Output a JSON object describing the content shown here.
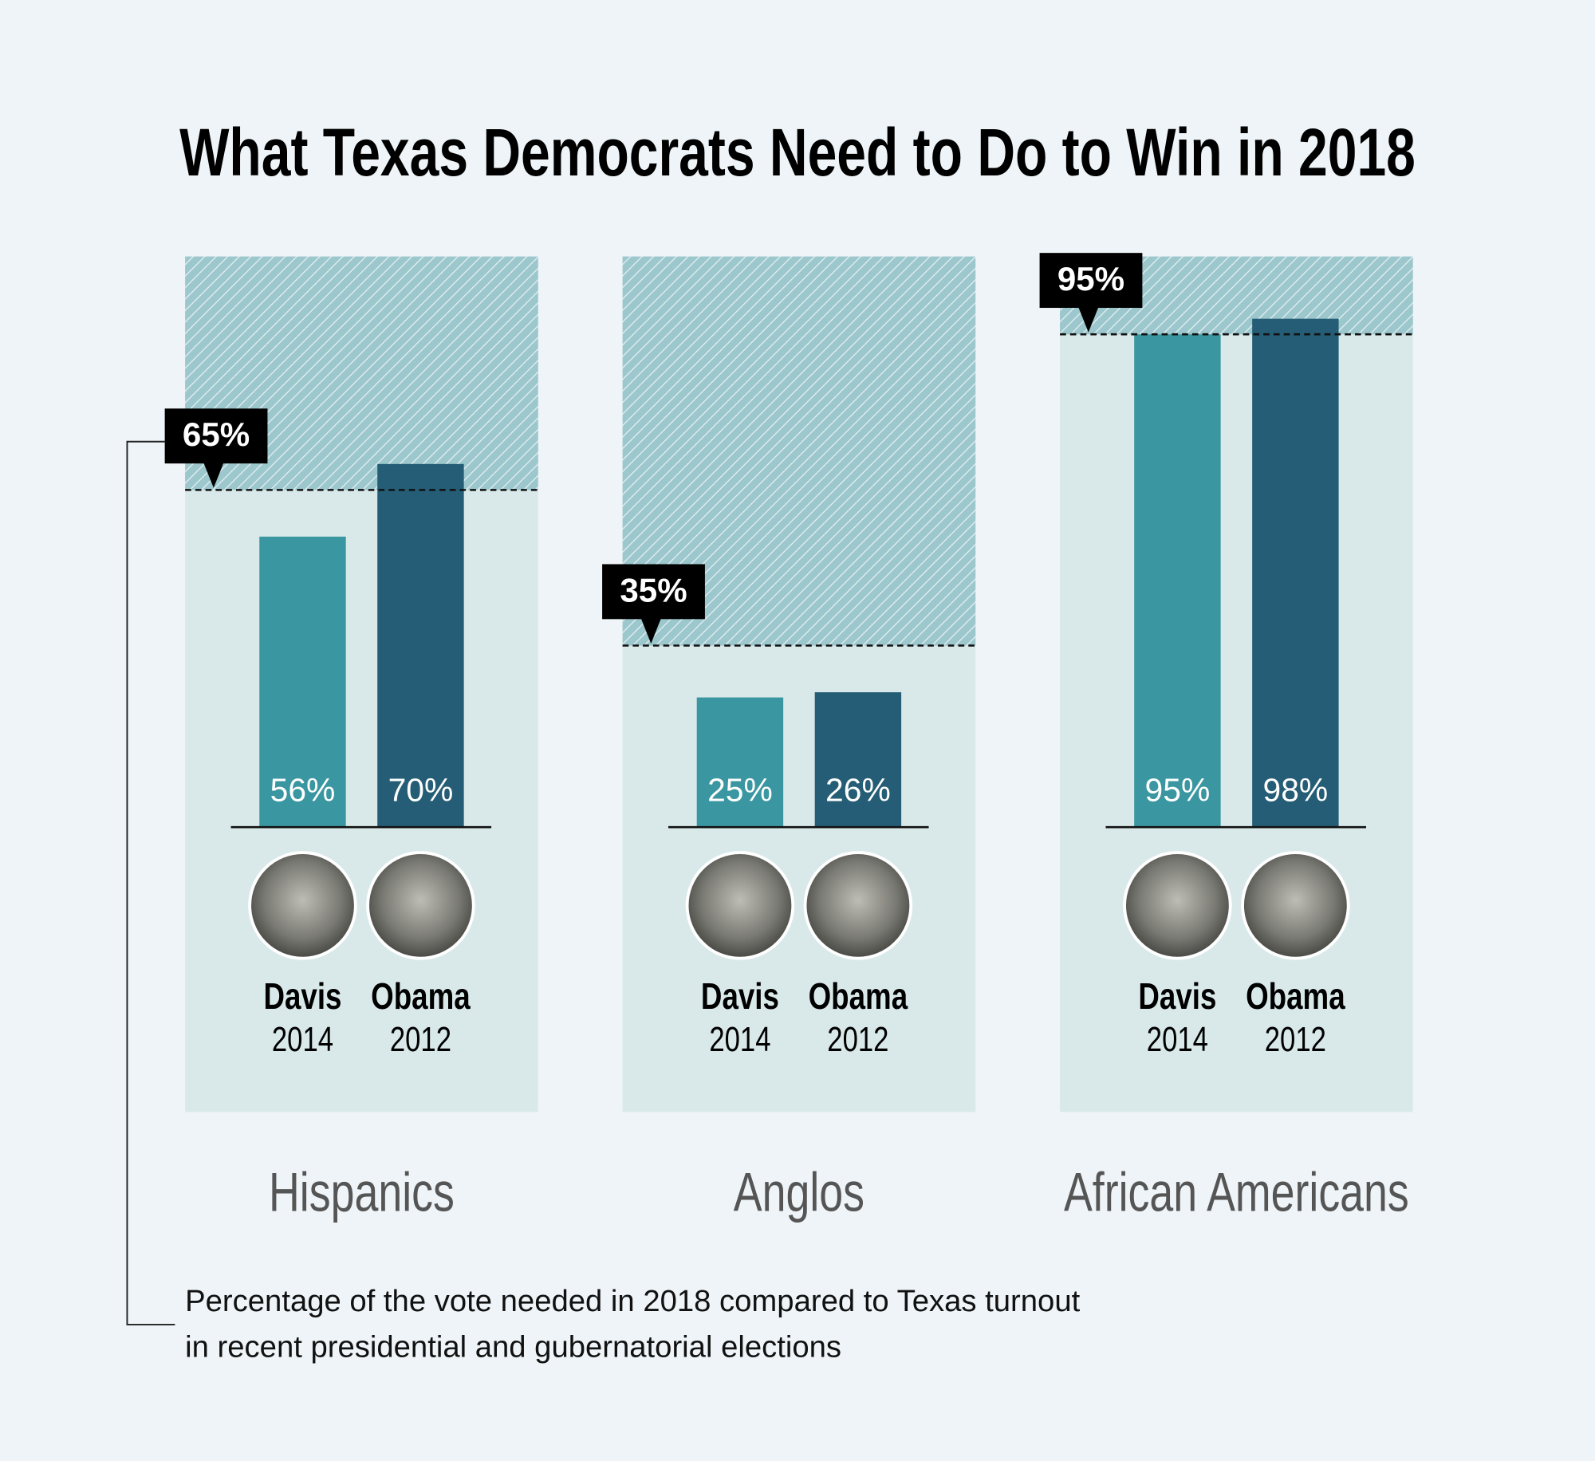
{
  "chart_data": {
    "type": "bar",
    "title": "What Texas Democrats Need to Do to Win in 2018",
    "categories": [
      "Hispanics",
      "Anglos",
      "African Americans"
    ],
    "series": [
      {
        "name": "Davis",
        "year": "2014",
        "color": "#3a96a0",
        "values": [
          56,
          25,
          95
        ],
        "value_labels": [
          "56%",
          "25%",
          "95%"
        ]
      },
      {
        "name": "Obama",
        "year": "2012",
        "color": "#245d75",
        "values": [
          70,
          26,
          98
        ],
        "value_labels": [
          "70%",
          "26%",
          "98%"
        ]
      }
    ],
    "targets": {
      "values": [
        65,
        35,
        95
      ],
      "value_labels": [
        "65%",
        "35%",
        "95%"
      ]
    },
    "ylim": [
      0,
      110
    ],
    "caption": [
      "Percentage of the vote needed in 2018 compared to Texas turnout",
      "in recent presidential and gubernatorial elections"
    ]
  }
}
